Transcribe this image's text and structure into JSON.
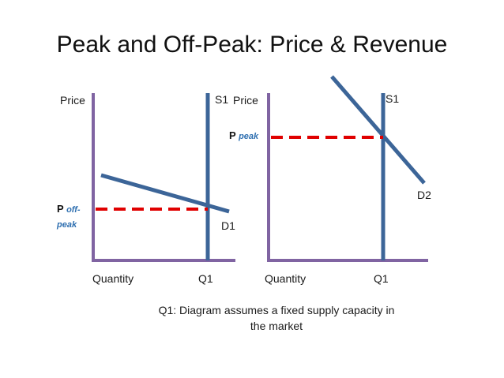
{
  "slide": {
    "title": "Peak and Off-Peak: Price & Revenue",
    "note": "Q1: Diagram assumes a fixed supply capacity in the market"
  },
  "colors": {
    "axes": "#8064a2",
    "curves": "#3c6598",
    "price_line": "#e00000",
    "subscript": "#2e6fb0"
  },
  "left_panel": {
    "y_axis_label": "Price",
    "x_axis_label": "Quantity",
    "supply_label": "S1",
    "demand_label": "D1",
    "quantity_label": "Q1",
    "price_main": "P",
    "price_sub_1": "off-",
    "price_sub_2": "peak"
  },
  "right_panel": {
    "y_axis_label": "Price",
    "x_axis_label": "Quantity",
    "supply_label": "S1",
    "demand_label": "D2",
    "quantity_label": "Q1",
    "price_main": "P",
    "price_sub": "peak"
  }
}
